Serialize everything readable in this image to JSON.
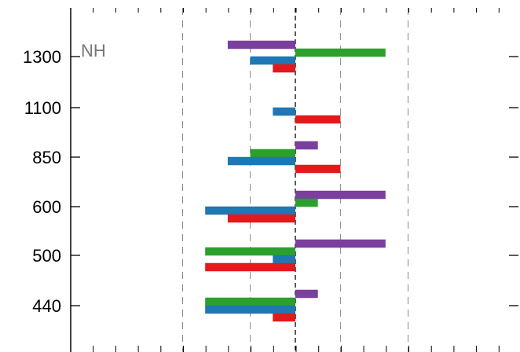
{
  "chart_data": {
    "type": "bar",
    "orientation": "horizontal",
    "annotation": "NH",
    "title": "",
    "xlabel": "",
    "ylabel": "",
    "categories": [
      "1300",
      "1100",
      "850",
      "600",
      "500",
      "440"
    ],
    "category_order": "top-to-bottom",
    "xlim": [
      -10,
      10
    ],
    "x_gridlines": [
      -5,
      -2,
      0,
      2,
      5
    ],
    "grid": true,
    "legend": "none",
    "series": [
      {
        "color": "#7b3f9e",
        "values": [
          -3,
          null,
          1,
          4,
          4,
          1
        ]
      },
      {
        "color": "#2ca02c",
        "values": [
          4,
          null,
          -2,
          1,
          -4,
          -4
        ]
      },
      {
        "color": "#1f77b4",
        "values": [
          -2,
          -1,
          -3,
          -4,
          -1,
          -4
        ]
      },
      {
        "color": "#e31a1c",
        "values": [
          -1,
          2,
          2,
          -3,
          -4,
          -1
        ]
      }
    ],
    "tick_labels": [
      "1300",
      "1100",
      "850",
      "600",
      "500",
      "440"
    ],
    "colors": {
      "annotation": "#777777",
      "gridline": "#888888",
      "axis": "#000000"
    }
  }
}
